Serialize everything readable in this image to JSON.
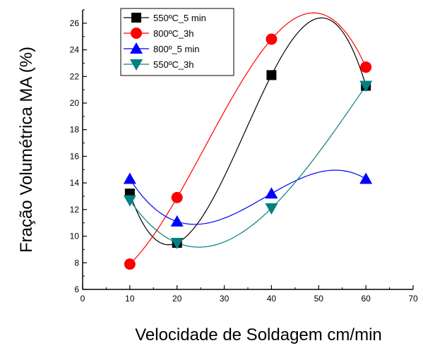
{
  "chart_data": {
    "type": "scatter",
    "title": "",
    "xlabel": "Velocidade de Soldagem cm/min",
    "ylabel": "Fração Volumétrica MA (%)",
    "xlim": [
      0,
      70
    ],
    "ylim": [
      6,
      27
    ],
    "xticks": [
      0,
      10,
      20,
      30,
      40,
      50,
      60,
      70
    ],
    "yticks": [
      6,
      8,
      10,
      12,
      14,
      16,
      18,
      20,
      22,
      24,
      26
    ],
    "grid": false,
    "legend_position": "top-center",
    "series": [
      {
        "name": "550ºC_5 min",
        "marker": "square",
        "color": "#000000",
        "x": [
          10,
          20,
          40,
          60
        ],
        "y": [
          13.2,
          9.5,
          22.1,
          21.3
        ],
        "fit_curve": true
      },
      {
        "name": "800ºC_3h",
        "marker": "circle",
        "color": "#ff0000",
        "x": [
          10,
          20,
          40,
          60
        ],
        "y": [
          7.9,
          12.9,
          24.8,
          22.7
        ],
        "fit_curve": true
      },
      {
        "name": "800º_5 min",
        "marker": "triangle-up",
        "color": "#0000ff",
        "x": [
          10,
          20,
          40,
          60
        ],
        "y": [
          14.3,
          11.1,
          13.2,
          14.3
        ],
        "fit_curve": true
      },
      {
        "name": "550ºC_3h",
        "marker": "triangle-down",
        "color": "#008080",
        "x": [
          10,
          20,
          40,
          60
        ],
        "y": [
          12.7,
          9.5,
          12.1,
          21.3
        ],
        "fit_curve": true
      }
    ]
  }
}
